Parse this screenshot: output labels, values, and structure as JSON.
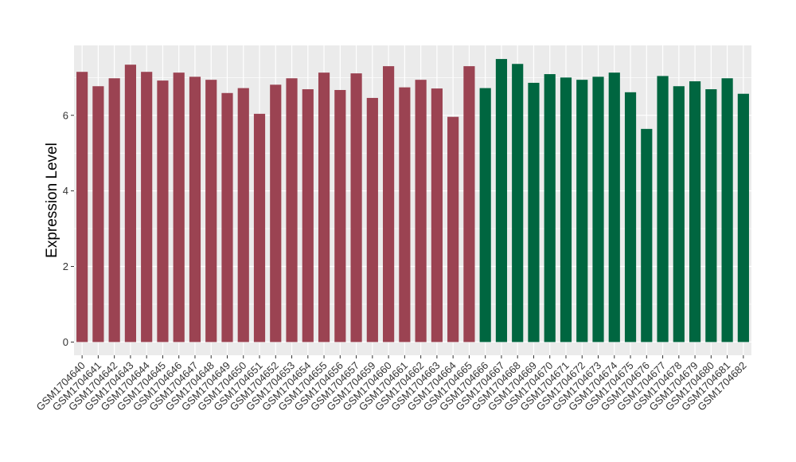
{
  "chart_data": {
    "type": "bar",
    "title": "",
    "xlabel": "",
    "ylabel": "Expression Level",
    "ylim": [
      -0.35,
      7.85
    ],
    "yticks": [
      0,
      2,
      4,
      6
    ],
    "grid": true,
    "legend": "none",
    "colors": {
      "group1": "#9b4352",
      "group2": "#006640",
      "panel": "#ebebeb",
      "gridline": "#ffffff"
    },
    "categories": [
      "GSM1704640",
      "GSM1704641",
      "GSM1704642",
      "GSM1704643",
      "GSM1704644",
      "GSM1704645",
      "GSM1704646",
      "GSM1704647",
      "GSM1704648",
      "GSM1704649",
      "GSM1704650",
      "GSM1704651",
      "GSM1704652",
      "GSM1704653",
      "GSM1704654",
      "GSM1704655",
      "GSM1704656",
      "GSM1704657",
      "GSM1704659",
      "GSM1704660",
      "GSM1704661",
      "GSM1704662",
      "GSM1704663",
      "GSM1704664",
      "GSM1704665",
      "GSM1704666",
      "GSM1704667",
      "GSM1704668",
      "GSM1704669",
      "GSM1704670",
      "GSM1704671",
      "GSM1704672",
      "GSM1704673",
      "GSM1704674",
      "GSM1704675",
      "GSM1704676",
      "GSM1704677",
      "GSM1704678",
      "GSM1704679",
      "GSM1704680",
      "GSM1704681",
      "GSM1704682"
    ],
    "values": [
      7.15,
      6.77,
      6.98,
      7.34,
      7.15,
      6.92,
      7.13,
      7.02,
      6.94,
      6.59,
      6.72,
      6.04,
      6.81,
      6.98,
      6.69,
      7.13,
      6.67,
      7.11,
      6.46,
      7.3,
      6.74,
      6.94,
      6.71,
      5.96,
      7.3,
      6.72,
      7.49,
      7.36,
      6.86,
      7.09,
      7.0,
      6.94,
      7.02,
      7.13,
      6.61,
      5.64,
      7.04,
      6.77,
      6.9,
      6.69,
      6.98,
      6.57
    ],
    "groups": [
      1,
      1,
      1,
      1,
      1,
      1,
      1,
      1,
      1,
      1,
      1,
      1,
      1,
      1,
      1,
      1,
      1,
      1,
      1,
      1,
      1,
      1,
      1,
      1,
      1,
      2,
      2,
      2,
      2,
      2,
      2,
      2,
      2,
      2,
      2,
      2,
      2,
      2,
      2,
      2,
      2,
      2
    ]
  }
}
